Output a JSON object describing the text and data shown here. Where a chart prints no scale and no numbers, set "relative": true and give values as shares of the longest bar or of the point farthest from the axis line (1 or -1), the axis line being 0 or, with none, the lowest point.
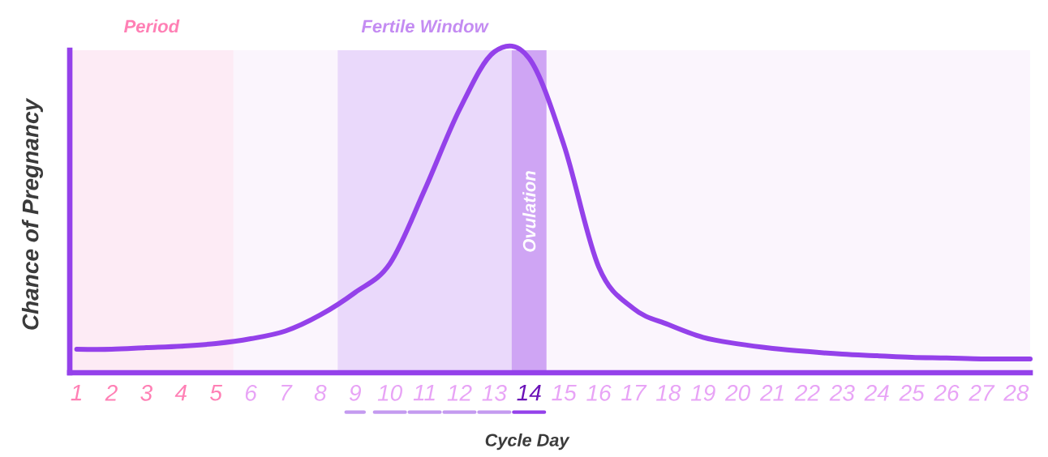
{
  "chart_data": {
    "type": "line",
    "xlabel": "Cycle Day",
    "ylabel": "Chance of Pregnancy",
    "relative": true,
    "x": [
      1,
      2,
      3,
      4,
      5,
      6,
      7,
      8,
      9,
      10,
      11,
      12,
      13,
      14,
      15,
      16,
      17,
      18,
      19,
      20,
      21,
      22,
      23,
      24,
      25,
      26,
      27,
      28,
      28.4
    ],
    "series": [
      {
        "color": "#9441ea",
        "values": [
          0.073,
          0.073,
          0.078,
          0.083,
          0.091,
          0.106,
          0.13,
          0.18,
          0.25,
          0.34,
          0.57,
          0.82,
          1,
          0.98,
          0.71,
          0.33,
          0.2,
          0.15,
          0.11,
          0.09,
          0.076,
          0.066,
          0.058,
          0.053,
          0.048,
          0.046,
          0.043,
          0.043,
          0.043
        ]
      }
    ],
    "xlim": [
      0.8,
      28.4
    ],
    "xticks": [
      1,
      2,
      3,
      4,
      5,
      6,
      7,
      8,
      9,
      10,
      11,
      12,
      13,
      14,
      15,
      16,
      17,
      18,
      19,
      20,
      21,
      22,
      23,
      24,
      25,
      26,
      27,
      28
    ],
    "bands": [
      {
        "axis": "x",
        "from": 0.8,
        "to": 5.5,
        "label": "Period",
        "color": "#fdebf5"
      },
      {
        "axis": "x",
        "from": 8.5,
        "to": 13.5,
        "label": "Fertile Window",
        "color": "#ead9fb"
      },
      {
        "axis": "x",
        "from": 13.5,
        "to": 14.5,
        "label": "Ovulation",
        "color": "#cfa5f4"
      }
    ]
  }
}
